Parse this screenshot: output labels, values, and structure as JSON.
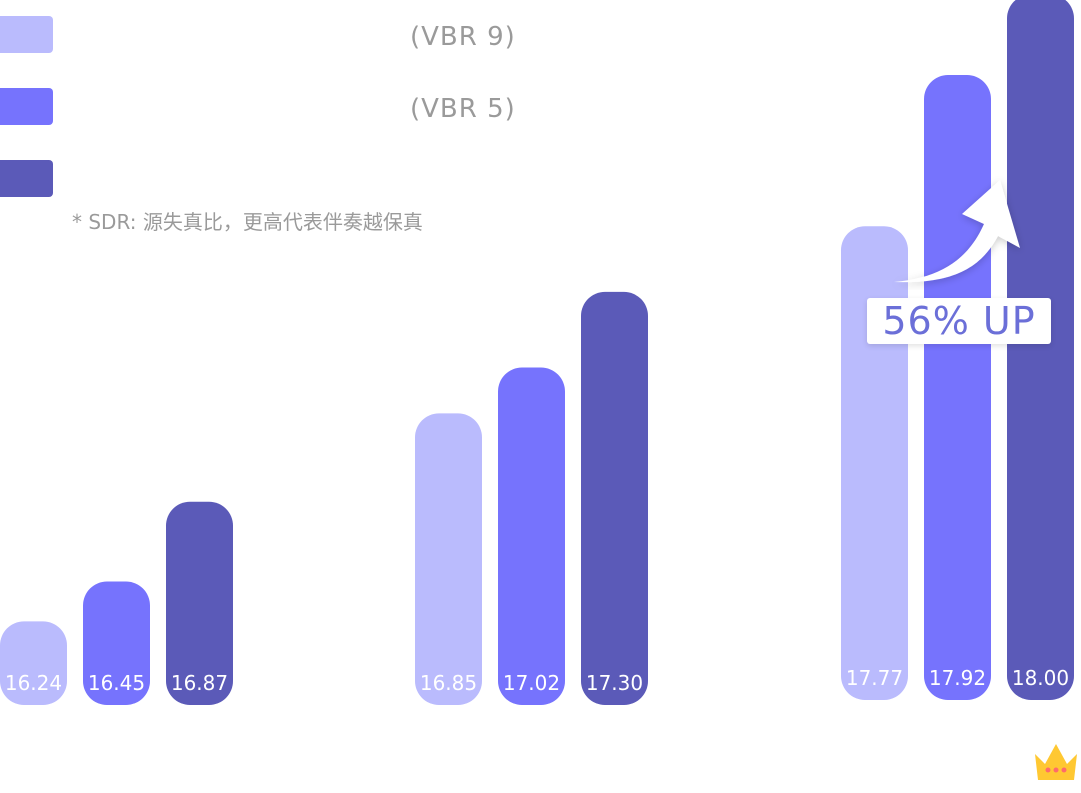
{
  "legend": [
    {
      "label": "(VBR 9)",
      "color": "#babbfd"
    },
    {
      "label": "(VBR 5)",
      "color": "#7673fd"
    },
    {
      "label": "",
      "color": "#5b5ab8"
    }
  ],
  "footnote": "* SDR: 源失真比，更高代表伴奏越保真",
  "badge": {
    "text": "56% UP"
  },
  "icons": {
    "arrow": "curved-up-arrow-icon",
    "crown": "crown-icon"
  },
  "chart_data": {
    "type": "bar",
    "categories": [
      "",
      "",
      ""
    ],
    "series": [
      {
        "values": [
          16.24,
          16.85,
          17.77
        ],
        "color": "#babbfd"
      },
      {
        "values": [
          16.45,
          17.02,
          17.92
        ],
        "color": "#7673fd"
      },
      {
        "values": [
          16.87,
          17.3,
          18.0
        ],
        "color": "#5b5ab8"
      }
    ],
    "data_labels": [
      [
        "16.24",
        "16.85",
        "17.77"
      ],
      [
        "16.45",
        "17.02",
        "17.92"
      ],
      [
        "16.87",
        "17.30",
        "18.00"
      ]
    ],
    "grid": false,
    "legend_position": "top-left"
  }
}
